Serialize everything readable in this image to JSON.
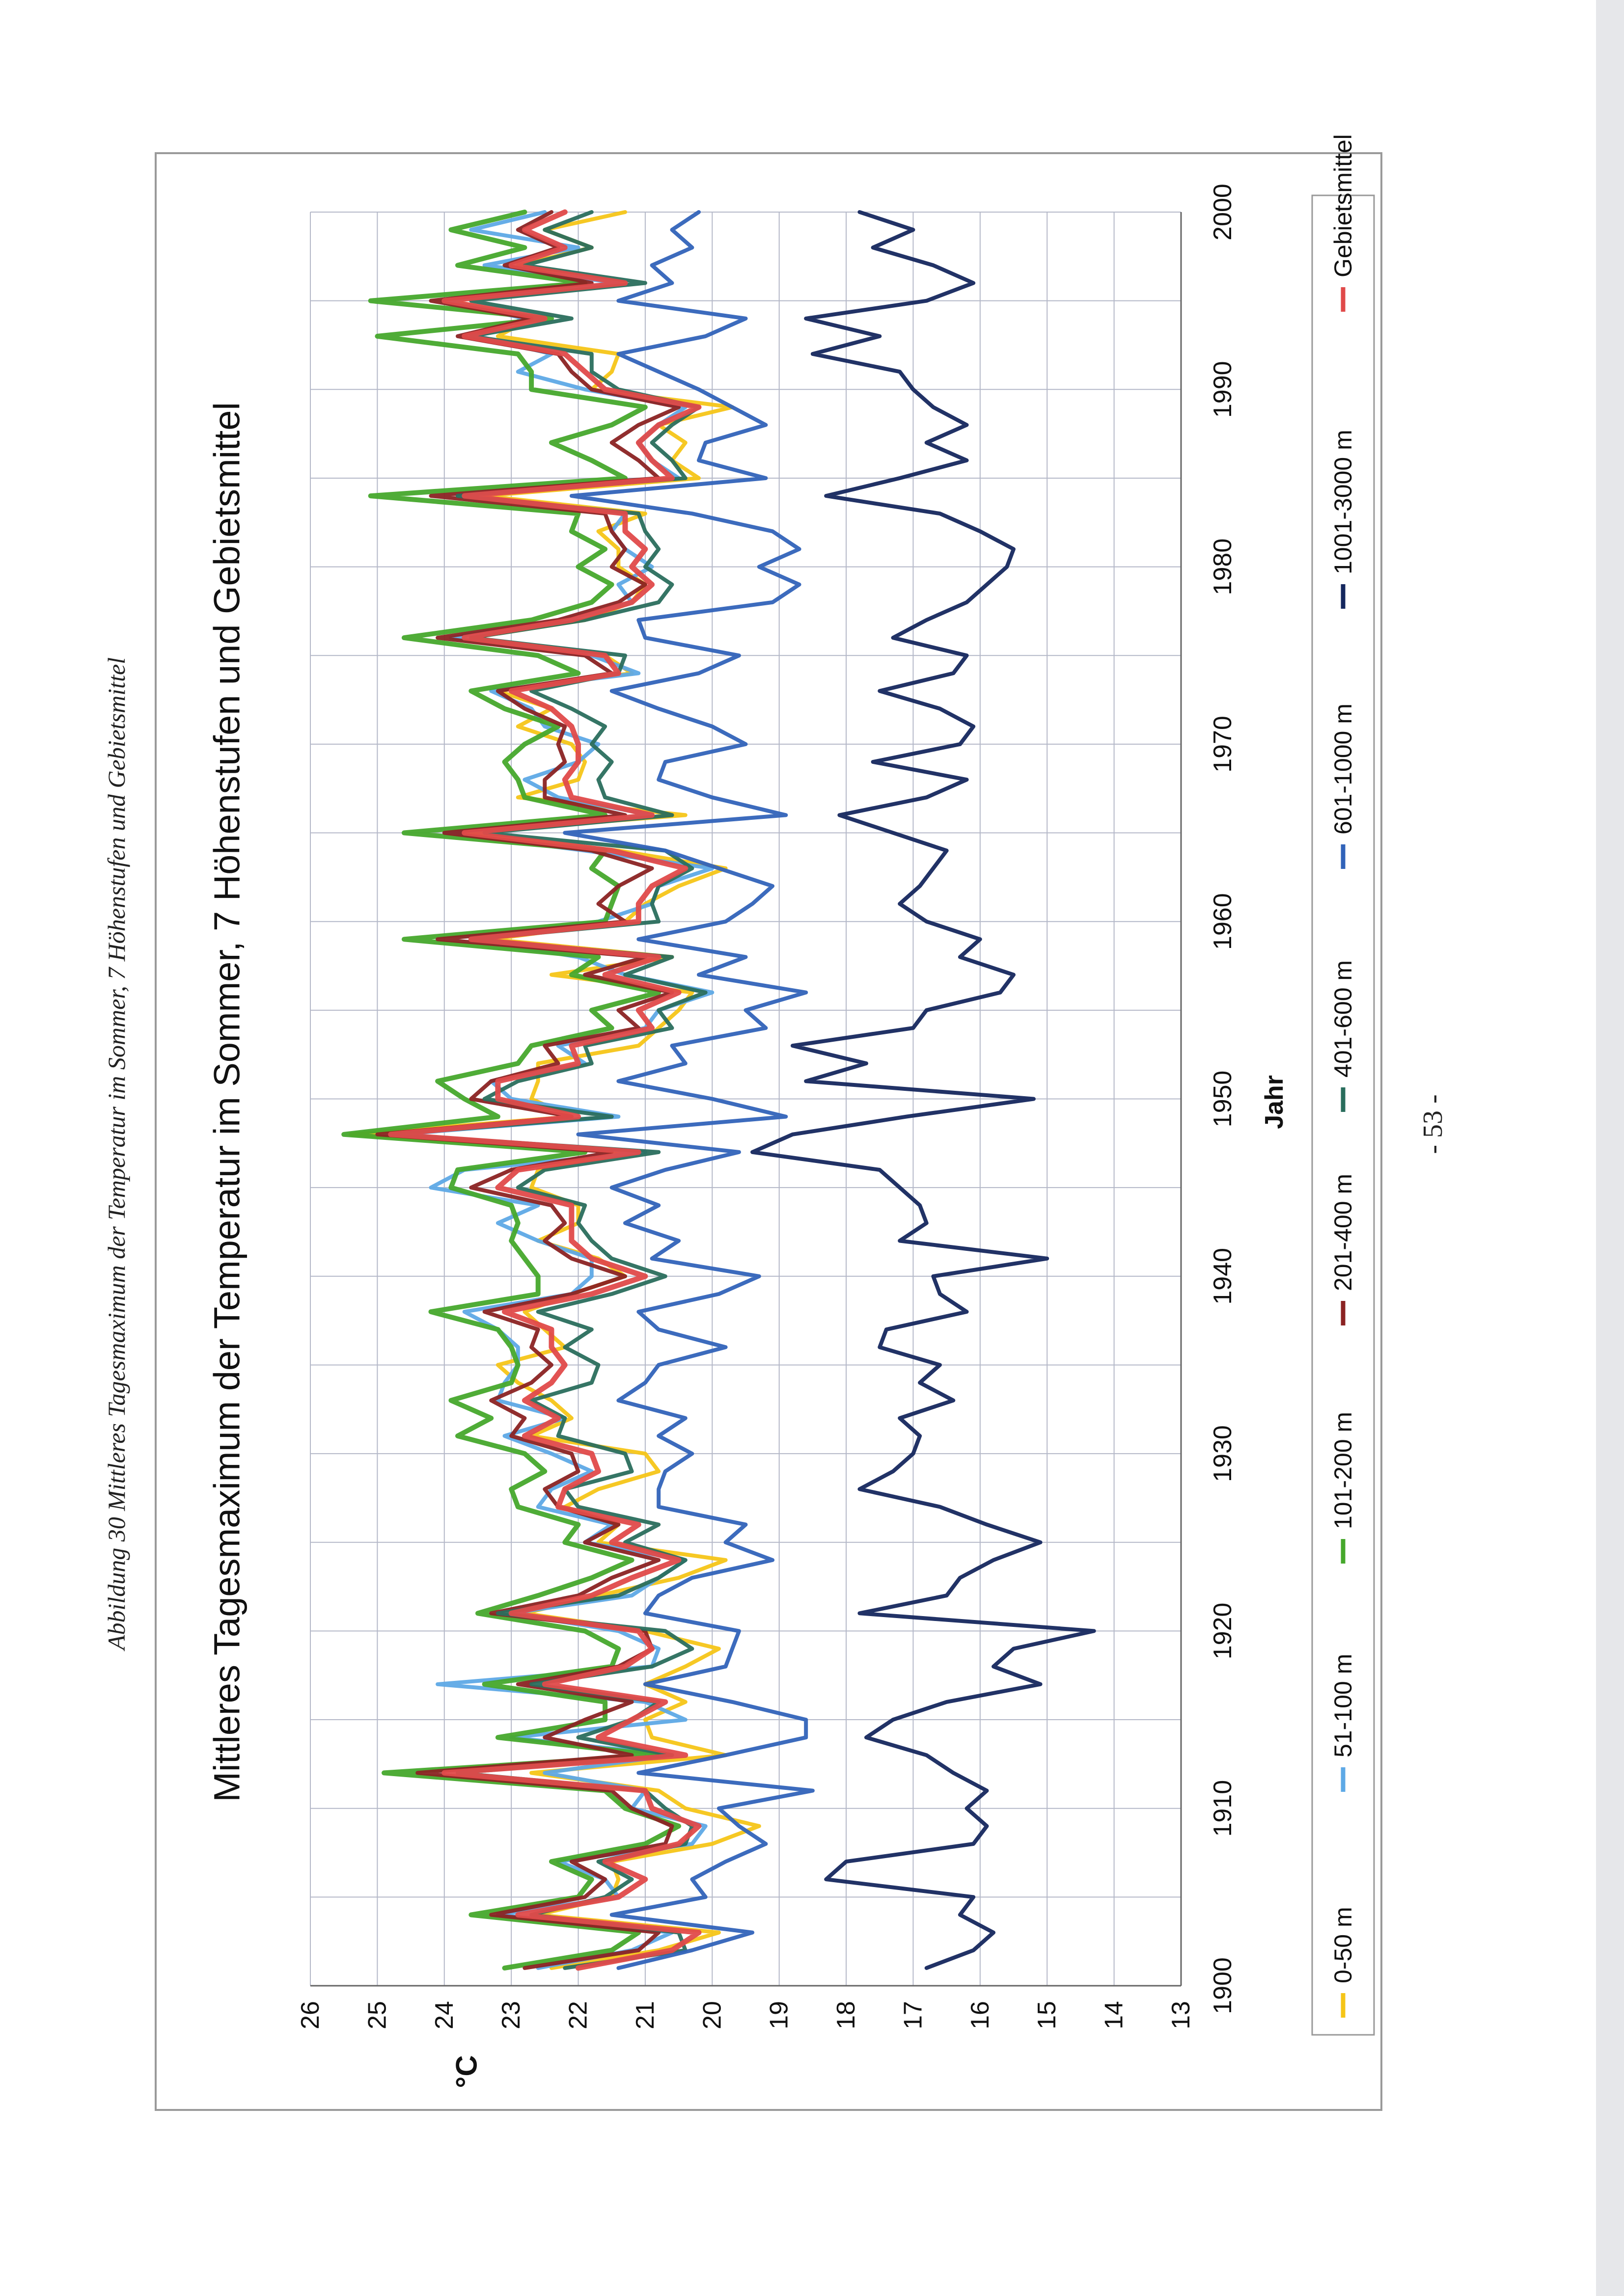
{
  "caption": "Abbildung 30 Mittleres Tagesmaximum der Temperatur im Sommer, 7 Höhenstufen und Gebietsmittel",
  "page_number": "- 53 -",
  "chart_data": {
    "type": "line",
    "title": "Mittleres Tagesmaximum der Temperatur im Sommer, 7 Höhenstufen und Gebietsmittel",
    "xlabel": "Jahr",
    "ylabel": "°C",
    "xlim": [
      1900,
      2000
    ],
    "ylim": [
      13,
      26
    ],
    "x_ticks": [
      "1900",
      "1910",
      "1920",
      "1930",
      "1940",
      "1950",
      "1960",
      "1970",
      "1980",
      "1990",
      "2000"
    ],
    "y_ticks": [
      "13",
      "14",
      "15",
      "16",
      "17",
      "18",
      "19",
      "20",
      "21",
      "22",
      "23",
      "24",
      "25",
      "26"
    ],
    "grid": true,
    "legend_position": "bottom",
    "x": [
      1901,
      1902,
      1903,
      1904,
      1905,
      1906,
      1907,
      1908,
      1909,
      1910,
      1911,
      1912,
      1913,
      1914,
      1915,
      1916,
      1917,
      1918,
      1919,
      1920,
      1921,
      1922,
      1923,
      1924,
      1925,
      1926,
      1927,
      1928,
      1929,
      1930,
      1931,
      1932,
      1933,
      1934,
      1935,
      1936,
      1937,
      1938,
      1939,
      1940,
      1941,
      1942,
      1943,
      1944,
      1945,
      1946,
      1947,
      1948,
      1949,
      1950,
      1951,
      1952,
      1953,
      1954,
      1955,
      1956,
      1957,
      1958,
      1959,
      1960,
      1961,
      1962,
      1963,
      1964,
      1965,
      1966,
      1967,
      1968,
      1969,
      1970,
      1971,
      1972,
      1973,
      1974,
      1975,
      1976,
      1977,
      1978,
      1979,
      1980,
      1981,
      1982,
      1983,
      1984,
      1985,
      1986,
      1987,
      1988,
      1989,
      1990,
      1991,
      1992,
      1993,
      1994,
      1995,
      1996,
      1997,
      1998,
      1999,
      2000
    ],
    "series": [
      {
        "name": "0-50 m",
        "color": "#f5c518",
        "values": [
          22.4,
          20.8,
          19.9,
          22.6,
          21.5,
          21.4,
          21.5,
          20.0,
          19.3,
          20.4,
          20.8,
          22.7,
          19.8,
          20.9,
          21.0,
          20.4,
          21.0,
          20.4,
          19.9,
          21.0,
          22.8,
          21.7,
          20.5,
          19.8,
          21.7,
          21.4,
          22.2,
          21.7,
          20.8,
          21.0,
          22.7,
          22.1,
          22.4,
          22.9,
          23.2,
          22.2,
          22.5,
          22.8,
          22.1,
          21.3,
          21.7,
          22.6,
          22.0,
          22.0,
          22.7,
          22.6,
          21.3,
          25.4,
          22.1,
          22.7,
          22.6,
          22.6,
          21.1,
          20.8,
          20.5,
          20.3,
          22.4,
          20.6,
          23.3,
          21.3,
          21.0,
          20.5,
          19.8,
          21.4,
          23.8,
          20.4,
          22.9,
          22.0,
          21.9,
          22.1,
          22.9,
          22.4,
          23.2,
          21.2,
          21.6,
          23.6,
          21.9,
          21.2,
          21.0,
          21.4,
          21.4,
          21.7,
          21.0,
          23.4,
          20.2,
          20.6,
          20.4,
          20.8,
          19.7,
          21.8,
          21.5,
          21.4,
          23.2,
          22.7,
          23.9,
          21.3,
          22.9,
          21.8,
          22.5,
          21.3
        ]
      },
      {
        "name": "51-100 m",
        "color": "#5ea9e6",
        "values": [
          22.6,
          21.2,
          20.6,
          23.2,
          21.4,
          21.6,
          22.3,
          20.3,
          20.1,
          21.2,
          21.0,
          22.5,
          20.6,
          23.0,
          20.4,
          21.0,
          24.1,
          20.9,
          20.8,
          21.4,
          23.0,
          21.2,
          20.8,
          20.4,
          21.9,
          21.5,
          22.6,
          22.4,
          21.8,
          22.4,
          23.1,
          22.2,
          23.2,
          23.1,
          22.9,
          22.9,
          23.2,
          23.7,
          22.1,
          21.8,
          21.8,
          22.6,
          23.2,
          22.6,
          24.2,
          23.7,
          21.0,
          24.7,
          21.4,
          23.0,
          23.3,
          21.9,
          22.3,
          21.0,
          20.8,
          20.0,
          21.3,
          22.0,
          23.6,
          21.7,
          20.9,
          20.8,
          20.0,
          21.9,
          24.0,
          20.9,
          22.3,
          22.8,
          22.0,
          21.7,
          22.5,
          22.7,
          23.3,
          21.1,
          21.8,
          23.9,
          22.2,
          21.2,
          21.4,
          20.9,
          21.3,
          21.5,
          21.3,
          23.8,
          20.5,
          20.9,
          21.1,
          20.8,
          20.4,
          21.9,
          22.9,
          22.4,
          23.5,
          22.8,
          24.0,
          21.4,
          23.4,
          22.0,
          23.6,
          22.5
        ]
      },
      {
        "name": "101-200 m",
        "color": "#46a82c",
        "values": [
          23.1,
          21.5,
          21.1,
          23.6,
          22.0,
          21.8,
          22.4,
          21.0,
          20.5,
          21.3,
          21.6,
          24.9,
          20.8,
          23.2,
          21.6,
          21.6,
          23.4,
          21.5,
          21.4,
          21.9,
          23.5,
          22.6,
          21.8,
          21.2,
          22.2,
          22.0,
          22.9,
          23.0,
          22.5,
          22.8,
          23.8,
          23.3,
          23.9,
          23.0,
          22.9,
          23.0,
          23.2,
          24.2,
          22.6,
          22.6,
          22.8,
          23.0,
          22.9,
          23.0,
          23.9,
          23.8,
          21.9,
          25.5,
          23.2,
          23.7,
          24.1,
          22.9,
          22.7,
          21.5,
          21.8,
          20.8,
          22.1,
          21.7,
          24.6,
          21.6,
          21.5,
          21.4,
          21.8,
          21.6,
          24.6,
          21.6,
          22.8,
          22.9,
          23.1,
          22.8,
          22.3,
          23.1,
          23.6,
          22.0,
          22.6,
          24.6,
          22.7,
          21.8,
          21.5,
          22.0,
          21.6,
          22.1,
          22.0,
          25.1,
          21.3,
          21.8,
          22.4,
          21.5,
          21.0,
          22.7,
          22.7,
          22.9,
          25.0,
          22.4,
          25.1,
          21.9,
          23.8,
          22.8,
          23.9,
          22.8
        ]
      },
      {
        "name": "201-400 m",
        "color": "#8b2323",
        "values": [
          22.8,
          21.1,
          20.8,
          23.3,
          21.9,
          21.6,
          22.1,
          20.7,
          20.6,
          21.2,
          21.5,
          24.4,
          21.2,
          22.5,
          21.9,
          21.2,
          22.9,
          21.4,
          20.9,
          21.0,
          23.3,
          22.0,
          21.5,
          20.8,
          21.9,
          21.4,
          22.3,
          22.5,
          22.0,
          22.1,
          23.0,
          22.8,
          23.3,
          22.7,
          22.4,
          22.7,
          22.6,
          23.4,
          22.1,
          21.3,
          22.1,
          22.5,
          22.2,
          22.4,
          23.6,
          23.0,
          21.5,
          25.0,
          22.1,
          23.6,
          23.3,
          22.3,
          22.5,
          21.1,
          21.4,
          20.6,
          21.9,
          21.0,
          24.1,
          21.3,
          21.7,
          21.4,
          20.9,
          21.8,
          24.0,
          21.3,
          22.5,
          22.5,
          22.2,
          22.3,
          22.2,
          22.8,
          23.2,
          21.5,
          21.9,
          24.1,
          22.3,
          21.4,
          21.0,
          21.5,
          21.3,
          21.5,
          21.6,
          24.2,
          20.8,
          21.1,
          21.5,
          21.1,
          20.5,
          21.8,
          22.1,
          22.3,
          23.8,
          22.7,
          24.2,
          21.8,
          23.1,
          22.3,
          22.9,
          22.4
        ]
      },
      {
        "name": "401-600 m",
        "color": "#2a6e5d",
        "values": [
          22.2,
          20.4,
          20.5,
          22.7,
          21.6,
          21.2,
          21.7,
          20.4,
          20.3,
          20.7,
          21.0,
          23.8,
          20.6,
          22.0,
          21.2,
          20.8,
          22.7,
          20.9,
          20.3,
          20.7,
          23.2,
          21.4,
          20.8,
          20.4,
          21.3,
          20.8,
          22.0,
          22.2,
          21.2,
          21.3,
          22.3,
          22.2,
          22.7,
          21.8,
          21.7,
          22.2,
          21.8,
          22.6,
          21.5,
          20.7,
          21.5,
          21.8,
          22.0,
          21.9,
          22.9,
          22.5,
          20.8,
          24.8,
          21.5,
          23.4,
          22.9,
          21.8,
          21.9,
          20.6,
          20.8,
          20.1,
          21.3,
          20.6,
          23.6,
          20.8,
          20.9,
          20.8,
          20.3,
          20.7,
          23.4,
          20.6,
          21.6,
          21.7,
          21.5,
          21.8,
          21.6,
          22.1,
          22.7,
          21.4,
          21.3,
          23.6,
          21.9,
          20.8,
          20.6,
          21.0,
          20.8,
          21.0,
          21.1,
          23.8,
          20.4,
          20.6,
          20.9,
          20.6,
          20.2,
          21.4,
          21.8,
          21.8,
          23.6,
          22.1,
          23.6,
          21.0,
          22.8,
          21.8,
          22.5,
          21.8
        ]
      },
      {
        "name": "601-1000 m",
        "color": "#3163b9",
        "values": [
          21.4,
          20.3,
          19.4,
          21.5,
          20.1,
          20.3,
          19.8,
          19.2,
          19.6,
          19.9,
          18.5,
          21.1,
          19.8,
          18.6,
          18.6,
          19.7,
          21.0,
          19.8,
          19.7,
          19.6,
          21.0,
          20.8,
          20.3,
          19.1,
          19.8,
          19.5,
          20.8,
          20.8,
          20.7,
          20.3,
          20.8,
          20.4,
          21.4,
          21.0,
          20.8,
          19.8,
          20.8,
          21.1,
          19.9,
          19.3,
          20.9,
          20.5,
          21.3,
          20.8,
          21.5,
          20.7,
          19.6,
          22.0,
          18.9,
          20.0,
          21.4,
          20.4,
          20.6,
          19.2,
          19.5,
          18.6,
          20.2,
          19.5,
          21.1,
          19.8,
          19.4,
          19.1,
          19.9,
          20.7,
          22.2,
          18.9,
          20.0,
          20.8,
          20.7,
          19.5,
          20.0,
          20.8,
          21.5,
          20.2,
          19.6,
          21.0,
          21.1,
          19.1,
          18.7,
          19.3,
          18.7,
          19.1,
          20.3,
          22.1,
          19.2,
          20.2,
          20.1,
          19.2,
          19.7,
          20.2,
          20.8,
          21.4,
          20.1,
          19.5,
          21.4,
          20.6,
          20.9,
          20.3,
          20.6,
          20.2
        ]
      },
      {
        "name": "1001-3000 m",
        "color": "#15275e",
        "values": [
          16.8,
          16.1,
          15.8,
          16.3,
          16.1,
          18.3,
          18.0,
          16.1,
          15.9,
          16.2,
          15.9,
          16.4,
          16.8,
          17.7,
          17.3,
          16.5,
          15.1,
          15.8,
          15.5,
          14.3,
          17.8,
          16.5,
          16.3,
          15.8,
          15.1,
          15.9,
          16.6,
          17.8,
          17.3,
          17.0,
          16.9,
          17.2,
          16.4,
          16.9,
          16.6,
          17.5,
          17.4,
          16.2,
          16.6,
          16.7,
          15.0,
          17.2,
          16.8,
          16.9,
          17.2,
          17.5,
          19.4,
          18.8,
          17.1,
          15.2,
          18.6,
          17.7,
          18.8,
          17.0,
          16.8,
          15.7,
          15.5,
          16.3,
          16.0,
          16.8,
          17.2,
          16.9,
          16.7,
          16.5,
          17.3,
          18.1,
          16.8,
          16.2,
          17.6,
          16.3,
          16.1,
          16.6,
          17.5,
          16.4,
          16.2,
          17.3,
          16.8,
          16.2,
          15.9,
          15.6,
          15.5,
          16.0,
          16.6,
          18.3,
          17.2,
          16.2,
          16.8,
          16.2,
          16.7,
          17.0,
          17.2,
          18.5,
          17.5,
          18.6,
          16.8,
          16.1,
          16.7,
          17.6,
          17.0,
          17.8
        ]
      },
      {
        "name": "Gebietsmittel",
        "color": "#e04a4a",
        "values": [
          22.0,
          20.6,
          20.2,
          22.9,
          21.4,
          21.0,
          21.6,
          20.5,
          20.2,
          20.9,
          21.0,
          24.0,
          20.4,
          21.7,
          21.2,
          20.7,
          22.5,
          21.3,
          20.9,
          21.1,
          23.0,
          21.8,
          21.2,
          20.5,
          21.5,
          21.1,
          22.3,
          22.2,
          21.7,
          21.8,
          22.8,
          22.3,
          22.8,
          22.4,
          22.2,
          22.4,
          22.4,
          23.1,
          21.8,
          21.0,
          21.8,
          22.1,
          22.1,
          22.1,
          23.2,
          22.9,
          21.1,
          24.8,
          22.0,
          23.2,
          23.2,
          22.0,
          22.1,
          20.9,
          21.1,
          20.5,
          21.6,
          20.8,
          23.6,
          21.1,
          21.1,
          20.9,
          20.4,
          21.5,
          23.7,
          20.9,
          22.1,
          22.2,
          22.0,
          22.0,
          22.1,
          22.4,
          23.0,
          21.4,
          21.6,
          23.7,
          22.1,
          21.2,
          20.9,
          21.2,
          21.0,
          21.3,
          21.3,
          23.7,
          20.6,
          20.9,
          21.1,
          20.8,
          20.2,
          21.6,
          21.9,
          22.2,
          23.7,
          22.5,
          24.0,
          21.3,
          23.0,
          22.2,
          22.8,
          22.2
        ]
      }
    ]
  }
}
